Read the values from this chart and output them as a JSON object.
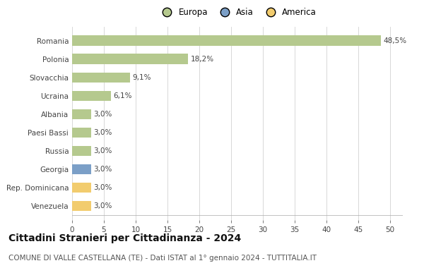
{
  "categories": [
    "Romania",
    "Polonia",
    "Slovacchia",
    "Ucraina",
    "Albania",
    "Paesi Bassi",
    "Russia",
    "Georgia",
    "Rep. Dominicana",
    "Venezuela"
  ],
  "values": [
    48.5,
    18.2,
    9.1,
    6.1,
    3.0,
    3.0,
    3.0,
    3.0,
    3.0,
    3.0
  ],
  "labels": [
    "48,5%",
    "18,2%",
    "9,1%",
    "6,1%",
    "3,0%",
    "3,0%",
    "3,0%",
    "3,0%",
    "3,0%",
    "3,0%"
  ],
  "continents": [
    "Europa",
    "Europa",
    "Europa",
    "Europa",
    "Europa",
    "Europa",
    "Europa",
    "Asia",
    "America",
    "America"
  ],
  "colors": {
    "Europa": "#b5c98e",
    "Asia": "#7b9fc7",
    "America": "#f2cc6e"
  },
  "legend_items": [
    "Europa",
    "Asia",
    "America"
  ],
  "legend_colors": [
    "#b5c98e",
    "#7b9fc7",
    "#f2cc6e"
  ],
  "xlim": [
    0,
    52
  ],
  "xticks": [
    0,
    5,
    10,
    15,
    20,
    25,
    30,
    35,
    40,
    45,
    50
  ],
  "title": "Cittadini Stranieri per Cittadinanza - 2024",
  "subtitle": "COMUNE DI VALLE CASTELLANA (TE) - Dati ISTAT al 1° gennaio 2024 - TUTTITALIA.IT",
  "background_color": "#ffffff",
  "grid_color": "#d8d8d8",
  "bar_height": 0.55,
  "label_fontsize": 7.5,
  "ytick_fontsize": 7.5,
  "xtick_fontsize": 7.5,
  "title_fontsize": 10,
  "subtitle_fontsize": 7.5,
  "legend_fontsize": 8.5
}
